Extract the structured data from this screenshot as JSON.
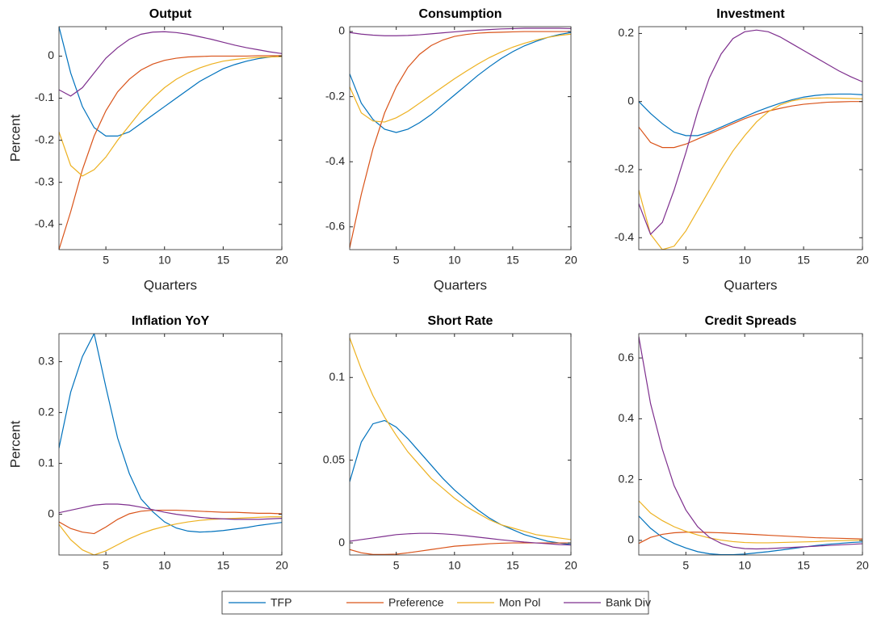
{
  "chart_data": [
    {
      "type": "line",
      "title": "Output",
      "ylabel": "Percent",
      "xlabel": "Quarters",
      "x": [
        1,
        2,
        3,
        4,
        5,
        6,
        7,
        8,
        9,
        10,
        11,
        12,
        13,
        14,
        15,
        16,
        17,
        18,
        19,
        20
      ],
      "xlim": [
        1,
        20
      ],
      "xticks": [
        5,
        10,
        15,
        20
      ],
      "ylim": [
        -0.46,
        0.07
      ],
      "yticks": [
        -0.4,
        -0.3,
        -0.2,
        -0.1,
        0
      ],
      "series": [
        {
          "name": "TFP",
          "color": "#0072BD",
          "values": [
            0.07,
            -0.04,
            -0.12,
            -0.17,
            -0.19,
            -0.19,
            -0.18,
            -0.16,
            -0.14,
            -0.12,
            -0.1,
            -0.08,
            -0.06,
            -0.045,
            -0.03,
            -0.02,
            -0.012,
            -0.006,
            -0.002,
            0
          ]
        },
        {
          "name": "Preference",
          "color": "#D95319",
          "values": [
            -0.46,
            -0.37,
            -0.27,
            -0.19,
            -0.13,
            -0.085,
            -0.055,
            -0.033,
            -0.019,
            -0.01,
            -0.005,
            -0.002,
            -0.001,
            0,
            0,
            0,
            0,
            0.001,
            0.001,
            0.001
          ]
        },
        {
          "name": "Mon Pol",
          "color": "#EDB120",
          "values": [
            -0.18,
            -0.26,
            -0.285,
            -0.27,
            -0.24,
            -0.2,
            -0.165,
            -0.13,
            -0.1,
            -0.075,
            -0.055,
            -0.04,
            -0.028,
            -0.019,
            -0.012,
            -0.008,
            -0.005,
            -0.003,
            -0.002,
            -0.001
          ]
        },
        {
          "name": "Bank Div",
          "color": "#7E2F8E",
          "values": [
            -0.08,
            -0.095,
            -0.075,
            -0.04,
            -0.005,
            0.02,
            0.04,
            0.052,
            0.057,
            0.058,
            0.056,
            0.052,
            0.046,
            0.04,
            0.033,
            0.026,
            0.02,
            0.015,
            0.01,
            0.006
          ]
        }
      ]
    },
    {
      "type": "line",
      "title": "Consumption",
      "xlabel": "Quarters",
      "x": [
        1,
        2,
        3,
        4,
        5,
        6,
        7,
        8,
        9,
        10,
        11,
        12,
        13,
        14,
        15,
        16,
        17,
        18,
        19,
        20
      ],
      "xlim": [
        1,
        20
      ],
      "xticks": [
        5,
        10,
        15,
        20
      ],
      "ylim": [
        -0.67,
        0.015
      ],
      "yticks": [
        -0.6,
        -0.4,
        -0.2,
        0
      ],
      "series": [
        {
          "name": "TFP",
          "color": "#0072BD",
          "values": [
            -0.13,
            -0.22,
            -0.27,
            -0.3,
            -0.31,
            -0.3,
            -0.28,
            -0.255,
            -0.225,
            -0.195,
            -0.165,
            -0.135,
            -0.108,
            -0.083,
            -0.062,
            -0.044,
            -0.03,
            -0.018,
            -0.009,
            -0.003
          ]
        },
        {
          "name": "Preference",
          "color": "#D95319",
          "values": [
            -0.665,
            -0.5,
            -0.36,
            -0.25,
            -0.17,
            -0.11,
            -0.07,
            -0.043,
            -0.026,
            -0.015,
            -0.009,
            -0.005,
            -0.003,
            -0.002,
            -0.001,
            0,
            0,
            0,
            0,
            0
          ]
        },
        {
          "name": "Mon Pol",
          "color": "#EDB120",
          "values": [
            -0.17,
            -0.25,
            -0.275,
            -0.278,
            -0.265,
            -0.245,
            -0.22,
            -0.195,
            -0.17,
            -0.145,
            -0.122,
            -0.1,
            -0.08,
            -0.063,
            -0.048,
            -0.036,
            -0.026,
            -0.018,
            -0.012,
            -0.008
          ]
        },
        {
          "name": "Bank Div",
          "color": "#7E2F8E",
          "values": [
            -0.003,
            -0.008,
            -0.011,
            -0.013,
            -0.013,
            -0.012,
            -0.01,
            -0.007,
            -0.004,
            -0.001,
            0.002,
            0.004,
            0.006,
            0.008,
            0.009,
            0.01,
            0.01,
            0.01,
            0.01,
            0.009
          ]
        }
      ]
    },
    {
      "type": "line",
      "title": "Investment",
      "xlabel": "Quarters",
      "x": [
        1,
        2,
        3,
        4,
        5,
        6,
        7,
        8,
        9,
        10,
        11,
        12,
        13,
        14,
        15,
        16,
        17,
        18,
        19,
        20
      ],
      "xlim": [
        1,
        20
      ],
      "xticks": [
        5,
        10,
        15,
        20
      ],
      "ylim": [
        -0.435,
        0.22
      ],
      "yticks": [
        -0.4,
        -0.2,
        0,
        0.2
      ],
      "series": [
        {
          "name": "TFP",
          "color": "#0072BD",
          "values": [
            0,
            -0.035,
            -0.065,
            -0.09,
            -0.1,
            -0.1,
            -0.09,
            -0.075,
            -0.06,
            -0.045,
            -0.03,
            -0.017,
            -0.005,
            0.005,
            0.013,
            0.018,
            0.021,
            0.022,
            0.022,
            0.02
          ]
        },
        {
          "name": "Preference",
          "color": "#D95319",
          "values": [
            -0.075,
            -0.12,
            -0.135,
            -0.135,
            -0.125,
            -0.11,
            -0.095,
            -0.08,
            -0.065,
            -0.05,
            -0.038,
            -0.028,
            -0.02,
            -0.013,
            -0.008,
            -0.005,
            -0.002,
            -0.001,
            0,
            0
          ]
        },
        {
          "name": "Mon Pol",
          "color": "#EDB120",
          "values": [
            -0.26,
            -0.39,
            -0.435,
            -0.425,
            -0.38,
            -0.32,
            -0.26,
            -0.2,
            -0.145,
            -0.1,
            -0.06,
            -0.03,
            -0.01,
            0.002,
            0.008,
            0.01,
            0.011,
            0.01,
            0.009,
            0.008
          ]
        },
        {
          "name": "Bank Div",
          "color": "#7E2F8E",
          "values": [
            -0.3,
            -0.39,
            -0.355,
            -0.26,
            -0.15,
            -0.03,
            0.07,
            0.14,
            0.185,
            0.205,
            0.21,
            0.205,
            0.19,
            0.17,
            0.15,
            0.13,
            0.11,
            0.09,
            0.073,
            0.058
          ]
        }
      ]
    },
    {
      "type": "line",
      "title": "Inflation YoY",
      "ylabel": "Percent",
      "x": [
        1,
        2,
        3,
        4,
        5,
        6,
        7,
        8,
        9,
        10,
        11,
        12,
        13,
        14,
        15,
        16,
        17,
        18,
        19,
        20
      ],
      "xlim": [
        1,
        20
      ],
      "xticks": [
        5,
        10,
        15,
        20
      ],
      "ylim": [
        -0.08,
        0.355
      ],
      "yticks": [
        0,
        0.1,
        0.2,
        0.3
      ],
      "series": [
        {
          "name": "TFP",
          "color": "#0072BD",
          "values": [
            0.13,
            0.24,
            0.31,
            0.355,
            0.25,
            0.15,
            0.08,
            0.03,
            0.005,
            -0.015,
            -0.027,
            -0.033,
            -0.035,
            -0.034,
            -0.032,
            -0.029,
            -0.026,
            -0.022,
            -0.019,
            -0.016
          ]
        },
        {
          "name": "Preference",
          "color": "#D95319",
          "values": [
            -0.015,
            -0.028,
            -0.035,
            -0.038,
            -0.025,
            -0.01,
            0.001,
            0.006,
            0.008,
            0.008,
            0.008,
            0.007,
            0.006,
            0.005,
            0.004,
            0.004,
            0.003,
            0.002,
            0.002,
            0.001
          ]
        },
        {
          "name": "Mon Pol",
          "color": "#EDB120",
          "values": [
            -0.02,
            -0.05,
            -0.07,
            -0.08,
            -0.072,
            -0.06,
            -0.048,
            -0.038,
            -0.03,
            -0.024,
            -0.019,
            -0.015,
            -0.012,
            -0.01,
            -0.009,
            -0.008,
            -0.007,
            -0.006,
            -0.005,
            -0.005
          ]
        },
        {
          "name": "Bank Div",
          "color": "#7E2F8E",
          "values": [
            0.003,
            0.008,
            0.013,
            0.018,
            0.02,
            0.02,
            0.018,
            0.014,
            0.009,
            0.004,
            0,
            -0.003,
            -0.006,
            -0.008,
            -0.009,
            -0.01,
            -0.01,
            -0.01,
            -0.009,
            -0.008
          ]
        }
      ]
    },
    {
      "type": "line",
      "title": "Short Rate",
      "x": [
        1,
        2,
        3,
        4,
        5,
        6,
        7,
        8,
        9,
        10,
        11,
        12,
        13,
        14,
        15,
        16,
        17,
        18,
        19,
        20
      ],
      "xlim": [
        1,
        20
      ],
      "xticks": [
        5,
        10,
        15,
        20
      ],
      "ylim": [
        -0.0073,
        0.1265
      ],
      "yticks": [
        0,
        0.05,
        0.1
      ],
      "series": [
        {
          "name": "TFP",
          "color": "#0072BD",
          "values": [
            0.037,
            0.061,
            0.072,
            0.074,
            0.07,
            0.063,
            0.055,
            0.047,
            0.039,
            0.032,
            0.026,
            0.02,
            0.015,
            0.011,
            0.008,
            0.005,
            0.003,
            0.001,
            0,
            -0.001
          ]
        },
        {
          "name": "Preference",
          "color": "#D95319",
          "values": [
            -0.004,
            -0.006,
            -0.007,
            -0.007,
            -0.0068,
            -0.006,
            -0.005,
            -0.004,
            -0.003,
            -0.002,
            -0.0015,
            -0.001,
            -0.0005,
            -0.0002,
            0,
            0,
            0,
            0,
            0,
            0
          ]
        },
        {
          "name": "Mon Pol",
          "color": "#EDB120",
          "values": [
            0.124,
            0.105,
            0.089,
            0.076,
            0.065,
            0.055,
            0.047,
            0.039,
            0.033,
            0.027,
            0.022,
            0.018,
            0.014,
            0.011,
            0.009,
            0.007,
            0.005,
            0.004,
            0.003,
            0.002
          ]
        },
        {
          "name": "Bank Div",
          "color": "#7E2F8E",
          "values": [
            0.001,
            0.002,
            0.003,
            0.004,
            0.005,
            0.0055,
            0.0058,
            0.0058,
            0.0055,
            0.005,
            0.0043,
            0.0035,
            0.0027,
            0.0019,
            0.0012,
            0.0005,
            0,
            -0.0005,
            -0.001,
            -0.0013
          ]
        }
      ]
    },
    {
      "type": "line",
      "title": "Credit Spreads",
      "x": [
        1,
        2,
        3,
        4,
        5,
        6,
        7,
        8,
        9,
        10,
        11,
        12,
        13,
        14,
        15,
        16,
        17,
        18,
        19,
        20
      ],
      "xlim": [
        1,
        20
      ],
      "xticks": [
        5,
        10,
        15,
        20
      ],
      "ylim": [
        -0.048,
        0.68
      ],
      "yticks": [
        0,
        0.2,
        0.4,
        0.6
      ],
      "series": [
        {
          "name": "TFP",
          "color": "#0072BD",
          "values": [
            0.08,
            0.04,
            0.01,
            -0.01,
            -0.025,
            -0.037,
            -0.044,
            -0.047,
            -0.047,
            -0.045,
            -0.041,
            -0.037,
            -0.032,
            -0.027,
            -0.022,
            -0.017,
            -0.013,
            -0.01,
            -0.007,
            -0.005
          ]
        },
        {
          "name": "Preference",
          "color": "#D95319",
          "values": [
            -0.01,
            0.01,
            0.02,
            0.025,
            0.027,
            0.027,
            0.026,
            0.025,
            0.023,
            0.021,
            0.019,
            0.017,
            0.015,
            0.013,
            0.011,
            0.009,
            0.008,
            0.007,
            0.006,
            0.005
          ]
        },
        {
          "name": "Mon Pol",
          "color": "#EDB120",
          "values": [
            0.13,
            0.09,
            0.065,
            0.045,
            0.03,
            0.018,
            0.008,
            0.001,
            -0.004,
            -0.007,
            -0.008,
            -0.008,
            -0.007,
            -0.006,
            -0.005,
            -0.004,
            -0.002,
            -0.001,
            0,
            0.001
          ]
        },
        {
          "name": "Bank Div",
          "color": "#7E2F8E",
          "values": [
            0.67,
            0.45,
            0.3,
            0.18,
            0.1,
            0.045,
            0.01,
            -0.01,
            -0.022,
            -0.027,
            -0.028,
            -0.027,
            -0.025,
            -0.023,
            -0.021,
            -0.019,
            -0.017,
            -0.015,
            -0.013,
            -0.011
          ]
        }
      ]
    }
  ]
}
